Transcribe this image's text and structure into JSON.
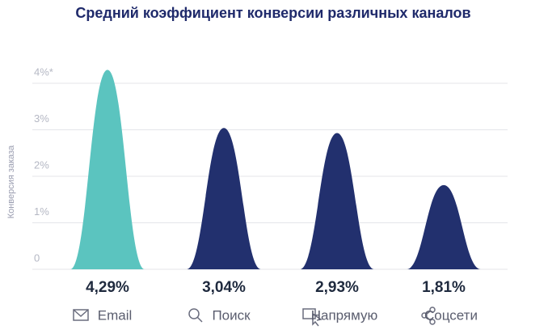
{
  "chart_data": {
    "type": "peak",
    "title": "Средний коэффициент конверсии различных каналов",
    "y_label": "Конверсия заказа",
    "categories": [
      "Email",
      "Поиск",
      "Напрямую",
      "Соцсети"
    ],
    "values": [
      4.29,
      3.04,
      2.93,
      1.81
    ],
    "value_labels": [
      "4,29%",
      "3,04%",
      "2,93%",
      "1,81%"
    ],
    "colors": [
      "#5bc4bf",
      "#22306e",
      "#22306e",
      "#22306e"
    ],
    "ylim": [
      0,
      4.4
    ],
    "yticks": [
      0,
      {
        "value": 1,
        "label": "1%"
      },
      {
        "value": 2,
        "label": "2%"
      },
      {
        "value": 3,
        "label": "3%"
      },
      {
        "value": 4,
        "label": "4%*"
      }
    ],
    "grid": true
  }
}
